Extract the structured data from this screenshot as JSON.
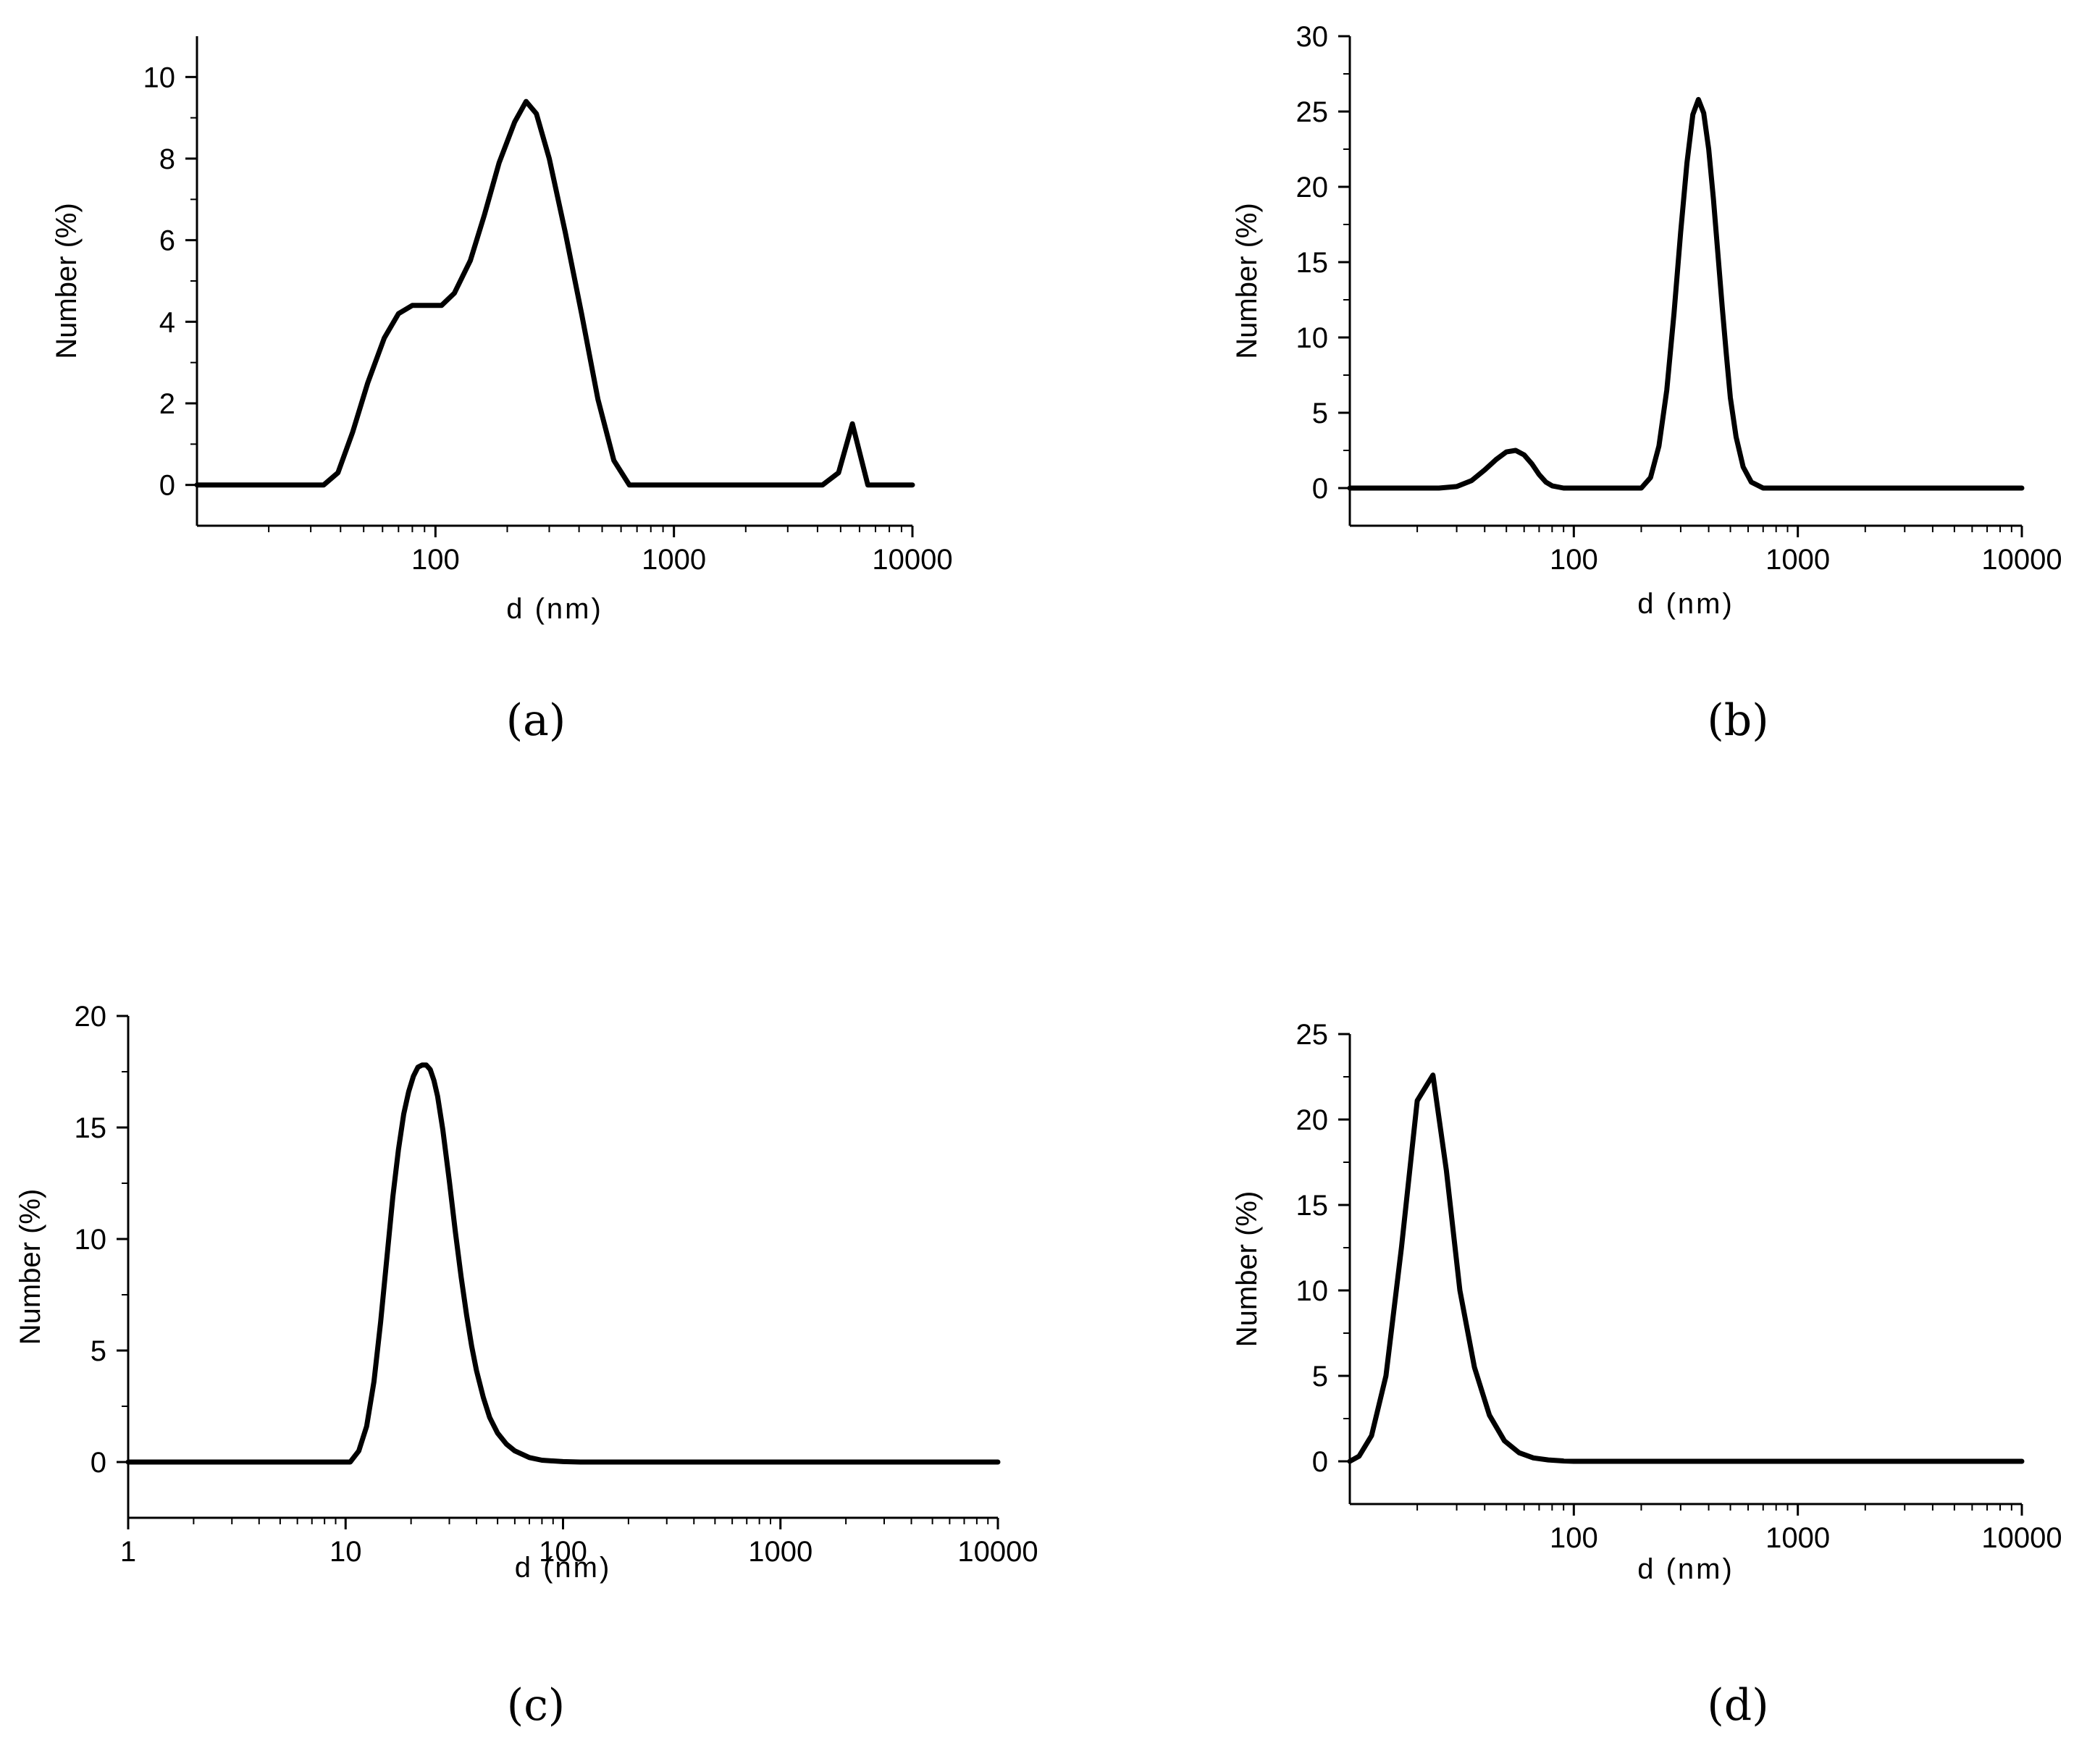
{
  "colors": {
    "line": "#000000",
    "background": "#ffffff"
  },
  "chart_data": [
    {
      "id": "a",
      "type": "line",
      "caption": "(a)",
      "xlabel": "d (nm)",
      "ylabel": "Number (%)",
      "xscale": "log",
      "xlim": [
        10,
        10000
      ],
      "ylim": [
        -1,
        11
      ],
      "xticks": [
        {
          "v": 100,
          "label": "100"
        },
        {
          "v": 1000,
          "label": "1000"
        },
        {
          "v": 10000,
          "label": "10000"
        }
      ],
      "yticks": [
        {
          "v": 0,
          "label": "0"
        },
        {
          "v": 2,
          "label": "2"
        },
        {
          "v": 4,
          "label": "4"
        },
        {
          "v": 6,
          "label": "6"
        },
        {
          "v": 8,
          "label": "8"
        },
        {
          "v": 10,
          "label": "10"
        }
      ],
      "series": [
        {
          "name": "a",
          "x": [
            10,
            34,
            39,
            45,
            52,
            61,
            70,
            80,
            92,
            106,
            120,
            140,
            160,
            185,
            215,
            240,
            265,
            300,
            350,
            410,
            480,
            560,
            650,
            740,
            4200,
            4900,
            5600,
            6500,
            10000
          ],
          "y": [
            0,
            0,
            0.3,
            1.3,
            2.5,
            3.6,
            4.2,
            4.4,
            4.4,
            4.4,
            4.7,
            5.5,
            6.6,
            7.9,
            8.9,
            9.4,
            9.1,
            8.0,
            6.2,
            4.2,
            2.1,
            0.6,
            0,
            0,
            0,
            0.3,
            1.5,
            0,
            0
          ]
        }
      ]
    },
    {
      "id": "b",
      "type": "line",
      "caption": "(b)",
      "xlabel": "d (nm)",
      "ylabel": "Number (%)",
      "xscale": "log",
      "xlim": [
        10,
        10000
      ],
      "ylim": [
        -2.5,
        30
      ],
      "xticks": [
        {
          "v": 100,
          "label": "100"
        },
        {
          "v": 1000,
          "label": "1000"
        },
        {
          "v": 10000,
          "label": "10000"
        }
      ],
      "yticks": [
        {
          "v": 0,
          "label": "0"
        },
        {
          "v": 5,
          "label": "5"
        },
        {
          "v": 10,
          "label": "10"
        },
        {
          "v": 15,
          "label": "15"
        },
        {
          "v": 20,
          "label": "20"
        },
        {
          "v": 25,
          "label": "25"
        },
        {
          "v": 30,
          "label": "30"
        }
      ],
      "series": [
        {
          "name": "b",
          "x": [
            10,
            25,
            30,
            35,
            40,
            45,
            50,
            55,
            60,
            65,
            70,
            75,
            80,
            90,
            100,
            150,
            200,
            220,
            240,
            260,
            280,
            300,
            320,
            340,
            360,
            380,
            400,
            420,
            440,
            460,
            480,
            500,
            530,
            570,
            620,
            700,
            1000,
            10000
          ],
          "y": [
            0,
            0,
            0.1,
            0.5,
            1.2,
            1.9,
            2.4,
            2.5,
            2.2,
            1.6,
            0.9,
            0.4,
            0.15,
            0,
            0,
            0,
            0,
            0.7,
            2.8,
            6.5,
            11.6,
            17.0,
            21.6,
            24.8,
            25.8,
            24.9,
            22.5,
            19.2,
            15.5,
            12.0,
            8.8,
            6.0,
            3.4,
            1.4,
            0.4,
            0,
            0,
            0
          ]
        }
      ]
    },
    {
      "id": "c",
      "type": "line",
      "caption": "(c)",
      "xlabel": "d (nm)",
      "ylabel": "Number (%)",
      "xscale": "log",
      "xlim": [
        1,
        10000
      ],
      "ylim": [
        -2.5,
        20
      ],
      "xticks": [
        {
          "v": 1,
          "label": "1"
        },
        {
          "v": 10,
          "label": "10"
        },
        {
          "v": 100,
          "label": "100"
        },
        {
          "v": 1000,
          "label": "1000"
        },
        {
          "v": 10000,
          "label": "10000"
        }
      ],
      "yticks": [
        {
          "v": 0,
          "label": "0"
        },
        {
          "v": 5,
          "label": "5"
        },
        {
          "v": 10,
          "label": "10"
        },
        {
          "v": 15,
          "label": "15"
        },
        {
          "v": 20,
          "label": "20"
        }
      ],
      "series": [
        {
          "name": "c",
          "x": [
            1,
            10.5,
            11.5,
            12.5,
            13.5,
            14.5,
            15.5,
            16.5,
            17.5,
            18.5,
            19.5,
            20.5,
            21.5,
            22.5,
            23.5,
            24.5,
            25.5,
            26.5,
            28,
            30,
            32,
            34,
            36,
            38,
            40,
            43,
            46,
            50,
            55,
            60,
            70,
            80,
            100,
            120,
            10000
          ],
          "y": [
            0,
            0,
            0.5,
            1.6,
            3.6,
            6.3,
            9.2,
            11.9,
            14.0,
            15.6,
            16.6,
            17.3,
            17.7,
            17.8,
            17.8,
            17.6,
            17.1,
            16.4,
            14.9,
            12.6,
            10.3,
            8.3,
            6.6,
            5.2,
            4.1,
            2.9,
            2.0,
            1.3,
            0.8,
            0.5,
            0.2,
            0.08,
            0.02,
            0,
            0
          ]
        }
      ]
    },
    {
      "id": "d",
      "type": "line",
      "caption": "(d)",
      "xlabel": "d (nm)",
      "ylabel": "Number (%)",
      "xscale": "log",
      "xlim": [
        10,
        10000
      ],
      "ylim": [
        -2.5,
        25
      ],
      "xticks": [
        {
          "v": 100,
          "label": "100"
        },
        {
          "v": 1000,
          "label": "1000"
        },
        {
          "v": 10000,
          "label": "10000"
        }
      ],
      "yticks": [
        {
          "v": 0,
          "label": "0"
        },
        {
          "v": 5,
          "label": "5"
        },
        {
          "v": 10,
          "label": "10"
        },
        {
          "v": 15,
          "label": "15"
        },
        {
          "v": 20,
          "label": "20"
        },
        {
          "v": 25,
          "label": "25"
        }
      ],
      "series": [
        {
          "name": "d",
          "x": [
            10,
            11,
            12.5,
            14.5,
            17,
            20,
            23.5,
            27,
            31,
            36,
            42,
            49,
            57,
            66,
            77,
            90,
            100,
            10000
          ],
          "y": [
            0,
            0.3,
            1.5,
            5.0,
            12.5,
            21.1,
            22.6,
            17.0,
            10.0,
            5.5,
            2.7,
            1.2,
            0.5,
            0.2,
            0.08,
            0.02,
            0,
            0
          ]
        }
      ]
    }
  ]
}
